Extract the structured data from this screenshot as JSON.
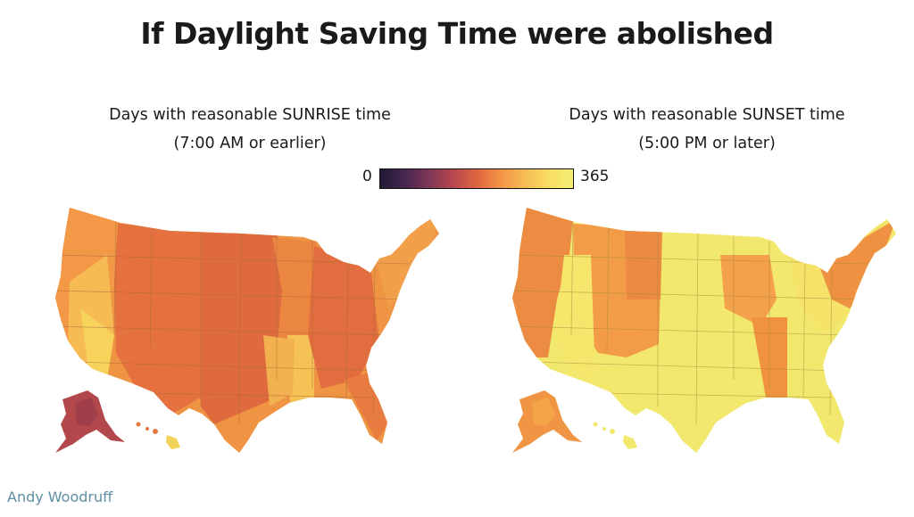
{
  "title": "If Daylight Saving Time were abolished",
  "sunrise_panel": {
    "line1": "Days with reasonable SUNRISE time",
    "line2": "(7:00 AM or earlier)"
  },
  "sunset_panel": {
    "line1": "Days with reasonable SUNSET time",
    "line2": "(5:00 PM or later)"
  },
  "legend": {
    "min": "0",
    "max": "365",
    "colors": [
      "#1f1a33",
      "#45264f",
      "#7d3656",
      "#b5474f",
      "#df6542",
      "#f39346",
      "#f7bc55",
      "#f8dd63",
      "#f4ee73"
    ]
  },
  "credit": "Andy Woodruff"
}
